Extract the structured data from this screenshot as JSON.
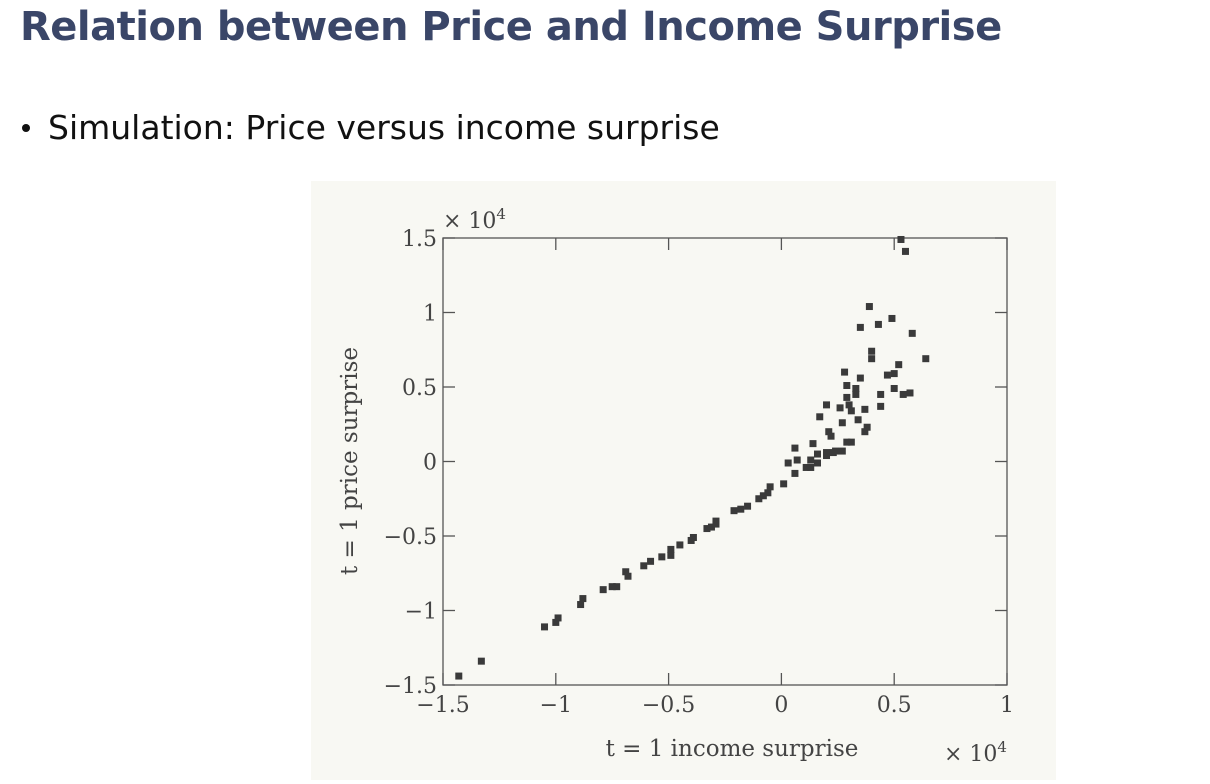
{
  "slide": {
    "title": "Relation between Price and Income Surprise",
    "bullet": "Simulation: Price versus income surprise",
    "title_color": "#3a4668"
  },
  "chart_data": {
    "type": "scatter",
    "title": "",
    "xlabel": "t = 1 income surprise",
    "ylabel": "t = 1 price surprise",
    "x_scale_label": "× 10^4",
    "y_scale_label": "× 10^4",
    "xlim": [
      -1.5,
      1
    ],
    "ylim": [
      -1.5,
      1.5
    ],
    "x_ticks": [
      "-1.5",
      "-1",
      "-0.5",
      "0",
      "0.5",
      "1"
    ],
    "y_ticks": [
      "-1.5",
      "-1",
      "-0.5",
      "0",
      "0.5",
      "1",
      "1.5"
    ],
    "grid": false,
    "marker": "square",
    "marker_color": "#3a3a3a",
    "units_multiplier": 10000,
    "points": [
      [
        -1.43,
        -1.44
      ],
      [
        -1.33,
        -1.34
      ],
      [
        -1.05,
        -1.11
      ],
      [
        -1.0,
        -1.08
      ],
      [
        -0.99,
        -1.05
      ],
      [
        -0.89,
        -0.96
      ],
      [
        -0.88,
        -0.92
      ],
      [
        -0.79,
        -0.86
      ],
      [
        -0.75,
        -0.84
      ],
      [
        -0.73,
        -0.84
      ],
      [
        -0.69,
        -0.74
      ],
      [
        -0.68,
        -0.77
      ],
      [
        -0.61,
        -0.7
      ],
      [
        -0.58,
        -0.67
      ],
      [
        -0.53,
        -0.64
      ],
      [
        -0.49,
        -0.63
      ],
      [
        -0.49,
        -0.59
      ],
      [
        -0.45,
        -0.56
      ],
      [
        -0.4,
        -0.53
      ],
      [
        -0.39,
        -0.51
      ],
      [
        -0.33,
        -0.45
      ],
      [
        -0.31,
        -0.44
      ],
      [
        -0.29,
        -0.42
      ],
      [
        -0.29,
        -0.4
      ],
      [
        -0.21,
        -0.33
      ],
      [
        -0.18,
        -0.32
      ],
      [
        -0.15,
        -0.3
      ],
      [
        -0.1,
        -0.25
      ],
      [
        -0.08,
        -0.23
      ],
      [
        -0.06,
        -0.21
      ],
      [
        -0.05,
        -0.17
      ],
      [
        0.01,
        -0.15
      ],
      [
        0.03,
        -0.01
      ],
      [
        0.06,
        -0.08
      ],
      [
        0.07,
        0.01
      ],
      [
        0.06,
        0.09
      ],
      [
        0.11,
        -0.04
      ],
      [
        0.13,
        -0.04
      ],
      [
        0.13,
        0.01
      ],
      [
        0.14,
        0.12
      ],
      [
        0.16,
        -0.01
      ],
      [
        0.16,
        0.05
      ],
      [
        0.17,
        0.3
      ],
      [
        0.2,
        0.04
      ],
      [
        0.2,
        0.06
      ],
      [
        0.2,
        0.38
      ],
      [
        0.21,
        0.2
      ],
      [
        0.22,
        0.17
      ],
      [
        0.23,
        0.06
      ],
      [
        0.24,
        0.07
      ],
      [
        0.26,
        0.36
      ],
      [
        0.27,
        0.26
      ],
      [
        0.27,
        0.07
      ],
      [
        0.28,
        0.6
      ],
      [
        0.29,
        0.43
      ],
      [
        0.29,
        0.51
      ],
      [
        0.29,
        0.13
      ],
      [
        0.3,
        0.38
      ],
      [
        0.31,
        0.34
      ],
      [
        0.31,
        0.13
      ],
      [
        0.33,
        0.49
      ],
      [
        0.33,
        0.45
      ],
      [
        0.34,
        0.28
      ],
      [
        0.35,
        0.9
      ],
      [
        0.35,
        0.56
      ],
      [
        0.37,
        0.35
      ],
      [
        0.37,
        0.2
      ],
      [
        0.38,
        0.23
      ],
      [
        0.39,
        1.04
      ],
      [
        0.4,
        0.74
      ],
      [
        0.4,
        0.69
      ],
      [
        0.43,
        0.92
      ],
      [
        0.44,
        0.45
      ],
      [
        0.44,
        0.37
      ],
      [
        0.47,
        0.58
      ],
      [
        0.49,
        0.96
      ],
      [
        0.5,
        0.59
      ],
      [
        0.5,
        0.49
      ],
      [
        0.52,
        0.65
      ],
      [
        0.53,
        1.49
      ],
      [
        0.54,
        0.45
      ],
      [
        0.55,
        1.41
      ],
      [
        0.57,
        0.46
      ],
      [
        0.58,
        0.86
      ],
      [
        0.64,
        0.69
      ]
    ]
  }
}
